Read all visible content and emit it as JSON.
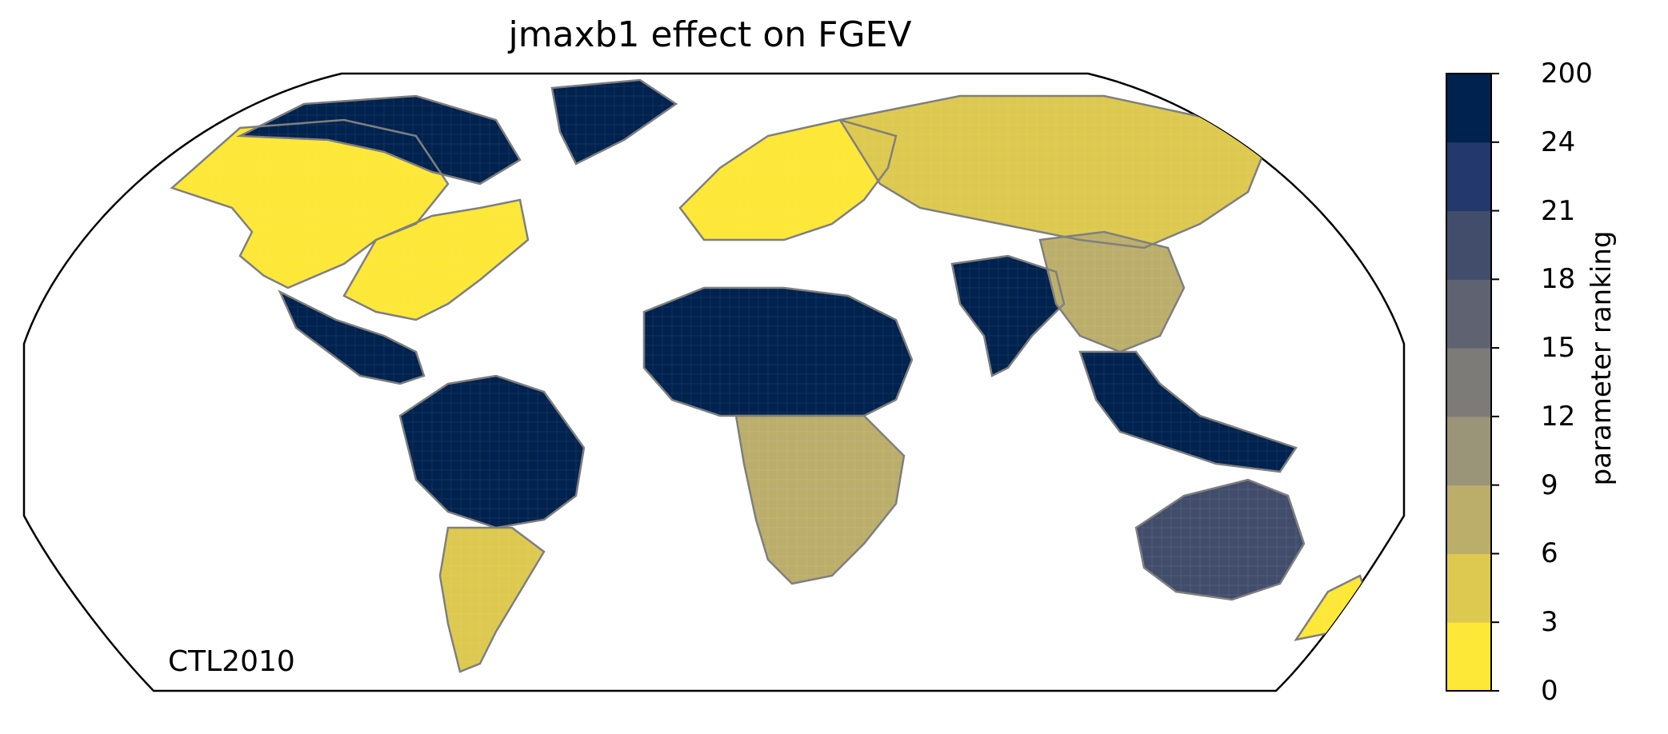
{
  "title": "jmaxb1 effect on FGEV",
  "scenario_label": "CTL2010",
  "colorbar": {
    "label": "parameter ranking",
    "ticks": [
      "0",
      "3",
      "6",
      "9",
      "12",
      "15",
      "18",
      "21",
      "24",
      "200"
    ],
    "bins": [
      {
        "from": "0",
        "to": "3",
        "color": "#fde737"
      },
      {
        "from": "3",
        "to": "6",
        "color": "#ddc94f"
      },
      {
        "from": "6",
        "to": "9",
        "color": "#bbae6b"
      },
      {
        "from": "9",
        "to": "12",
        "color": "#9a9478"
      },
      {
        "from": "12",
        "to": "15",
        "color": "#7c7b78"
      },
      {
        "from": "15",
        "to": "18",
        "color": "#5f6270"
      },
      {
        "from": "18",
        "to": "21",
        "color": "#414d6b"
      },
      {
        "from": "21",
        "to": "24",
        "color": "#23386c"
      },
      {
        "from": "24",
        "to": "200",
        "color": "#00224e"
      }
    ]
  },
  "map": {
    "projection": "Robinson",
    "coastline_color": "#7f7f7f",
    "frame_color": "#000000",
    "regions": [
      {
        "name": "north-america-west",
        "rank_bin": 0
      },
      {
        "name": "north-america-east",
        "rank_bin": 0
      },
      {
        "name": "canada-arctic",
        "rank_bin": 8
      },
      {
        "name": "greenland",
        "rank_bin": 8
      },
      {
        "name": "central-america",
        "rank_bin": 8
      },
      {
        "name": "amazon",
        "rank_bin": 8
      },
      {
        "name": "southern-south-america",
        "rank_bin": 1
      },
      {
        "name": "europe",
        "rank_bin": 0
      },
      {
        "name": "siberia",
        "rank_bin": 1
      },
      {
        "name": "sahara-sahel",
        "rank_bin": 8
      },
      {
        "name": "southern-africa",
        "rank_bin": 2
      },
      {
        "name": "india",
        "rank_bin": 8
      },
      {
        "name": "china",
        "rank_bin": 2
      },
      {
        "name": "southeast-asia",
        "rank_bin": 8
      },
      {
        "name": "australia",
        "rank_bin": 6
      },
      {
        "name": "new-zealand",
        "rank_bin": 0
      }
    ]
  }
}
